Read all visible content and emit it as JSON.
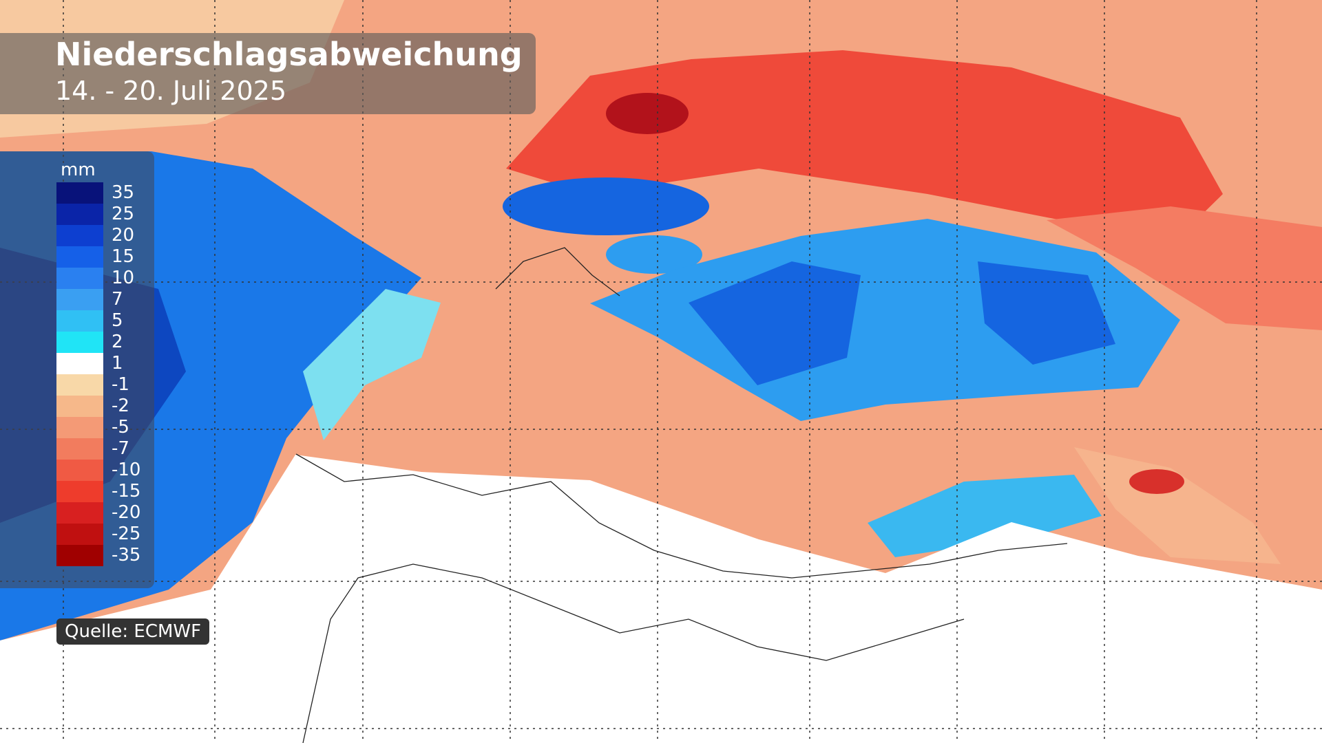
{
  "header": {
    "title": "Niederschlagsabweichung",
    "subtitle": "14. - 20. Juli 2025"
  },
  "legend": {
    "unit": "mm",
    "items": [
      {
        "value": 35,
        "color": "#08127a"
      },
      {
        "value": 25,
        "color": "#0a24a8"
      },
      {
        "value": 20,
        "color": "#0d3fd0"
      },
      {
        "value": 15,
        "color": "#1560e8"
      },
      {
        "value": 10,
        "color": "#2a80f0"
      },
      {
        "value": 7,
        "color": "#3a9ff2"
      },
      {
        "value": 5,
        "color": "#30c0f4"
      },
      {
        "value": 2,
        "color": "#20e4f6"
      },
      {
        "value": 1,
        "color": "#ffffff"
      },
      {
        "value": -1,
        "color": "#f8d8a8"
      },
      {
        "value": -2,
        "color": "#f6b88a"
      },
      {
        "value": -5,
        "color": "#f49a76"
      },
      {
        "value": -7,
        "color": "#f27c5e"
      },
      {
        "value": -10,
        "color": "#f05a44"
      },
      {
        "value": -15,
        "color": "#ee3c2c"
      },
      {
        "value": -20,
        "color": "#d82020"
      },
      {
        "value": -25,
        "color": "#c01010"
      },
      {
        "value": -35,
        "color": "#a00000"
      }
    ]
  },
  "source": "Quelle: ECMWF"
}
